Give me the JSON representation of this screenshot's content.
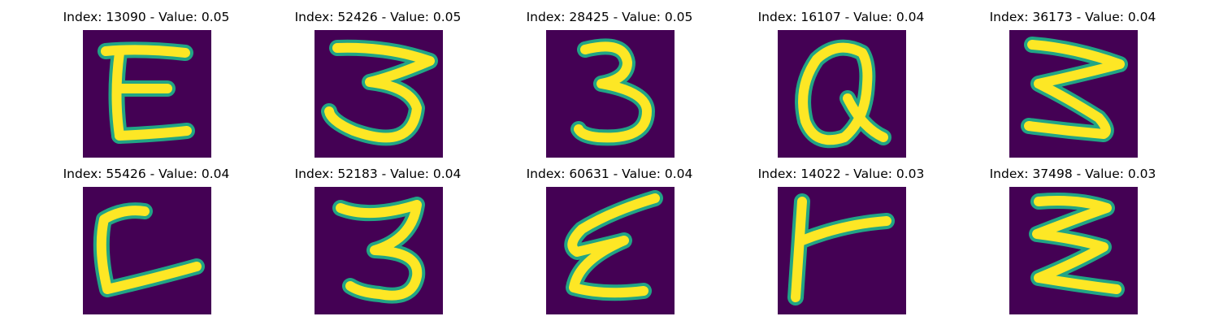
{
  "panels": [
    {
      "index": "13090",
      "value": "0.05",
      "title": "Index: 13090 - Value: 0.05",
      "icon": "handwritten-E-icon"
    },
    {
      "index": "52426",
      "value": "0.05",
      "title": "Index: 52426 - Value: 0.05",
      "icon": "handwritten-3-icon"
    },
    {
      "index": "28425",
      "value": "0.05",
      "title": "Index: 28425 - Value: 0.05",
      "icon": "handwritten-3-icon"
    },
    {
      "index": "16107",
      "value": "0.04",
      "title": "Index: 16107 - Value: 0.04",
      "icon": "handwritten-Q-icon"
    },
    {
      "index": "36173",
      "value": "0.04",
      "title": "Index: 36173 - Value: 0.04",
      "icon": "handwritten-3-icon"
    },
    {
      "index": "55426",
      "value": "0.04",
      "title": "Index: 55426 - Value: 0.04",
      "icon": "handwritten-L-icon"
    },
    {
      "index": "52183",
      "value": "0.04",
      "title": "Index: 52183 - Value: 0.04",
      "icon": "handwritten-3-icon"
    },
    {
      "index": "60631",
      "value": "0.04",
      "title": "Index: 60631 - Value: 0.04",
      "icon": "handwritten-E-icon"
    },
    {
      "index": "14022",
      "value": "0.03",
      "title": "Index: 14022 - Value: 0.03",
      "icon": "handwritten-r-icon"
    },
    {
      "index": "37498",
      "value": "0.03",
      "title": "Index: 37498 - Value: 0.03",
      "icon": "handwritten-3-icon"
    }
  ],
  "colors": {
    "background": "#ffffff",
    "image_bg": "#440154",
    "stroke_core": "#fde725",
    "stroke_edge": "#21a585",
    "title_text": "#000000"
  }
}
